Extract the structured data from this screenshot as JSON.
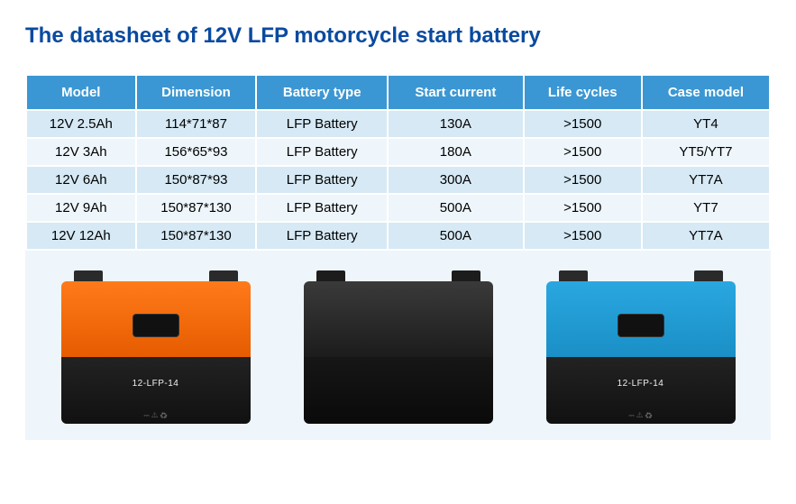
{
  "title": "The datasheet of 12V LFP motorcycle start battery",
  "table": {
    "columns": [
      "Model",
      "Dimension",
      "Battery type",
      "Start current",
      "Life cycles",
      "Case model"
    ],
    "rows": [
      [
        "12V 2.5Ah",
        "114*71*87",
        "LFP Battery",
        "130A",
        ">1500",
        "YT4"
      ],
      [
        "12V 3Ah",
        "156*65*93",
        "LFP Battery",
        "180A",
        ">1500",
        "YT5/YT7"
      ],
      [
        "12V 6Ah",
        "150*87*93",
        "LFP Battery",
        "300A",
        ">1500",
        "YT7A"
      ],
      [
        "12V 9Ah",
        "150*87*130",
        "LFP Battery",
        "500A",
        ">1500",
        "YT7"
      ],
      [
        "12V 12Ah",
        "150*87*130",
        "LFP Battery",
        "500A",
        ">1500",
        "YT7A"
      ]
    ],
    "header_bg": "#3b97d3",
    "header_fg": "#ffffff",
    "row_band_a": "#d6e9f5",
    "row_band_b": "#eef6fb",
    "border_color": "#ffffff",
    "font_size": 15
  },
  "batteries": [
    {
      "variant": "orange",
      "top_color": "#ff7a1a",
      "body_color": "#111111",
      "label": "12-LFP-14"
    },
    {
      "variant": "black",
      "top_color": "#2a2a2a",
      "body_color": "#0f0f0f",
      "label": ""
    },
    {
      "variant": "blue",
      "top_color": "#2aa7e0",
      "body_color": "#111111",
      "label": "12-LFP-14"
    }
  ],
  "colors": {
    "title": "#0a4aa0",
    "page_bg": "#ffffff",
    "panel_bg": "#eef6fb"
  }
}
